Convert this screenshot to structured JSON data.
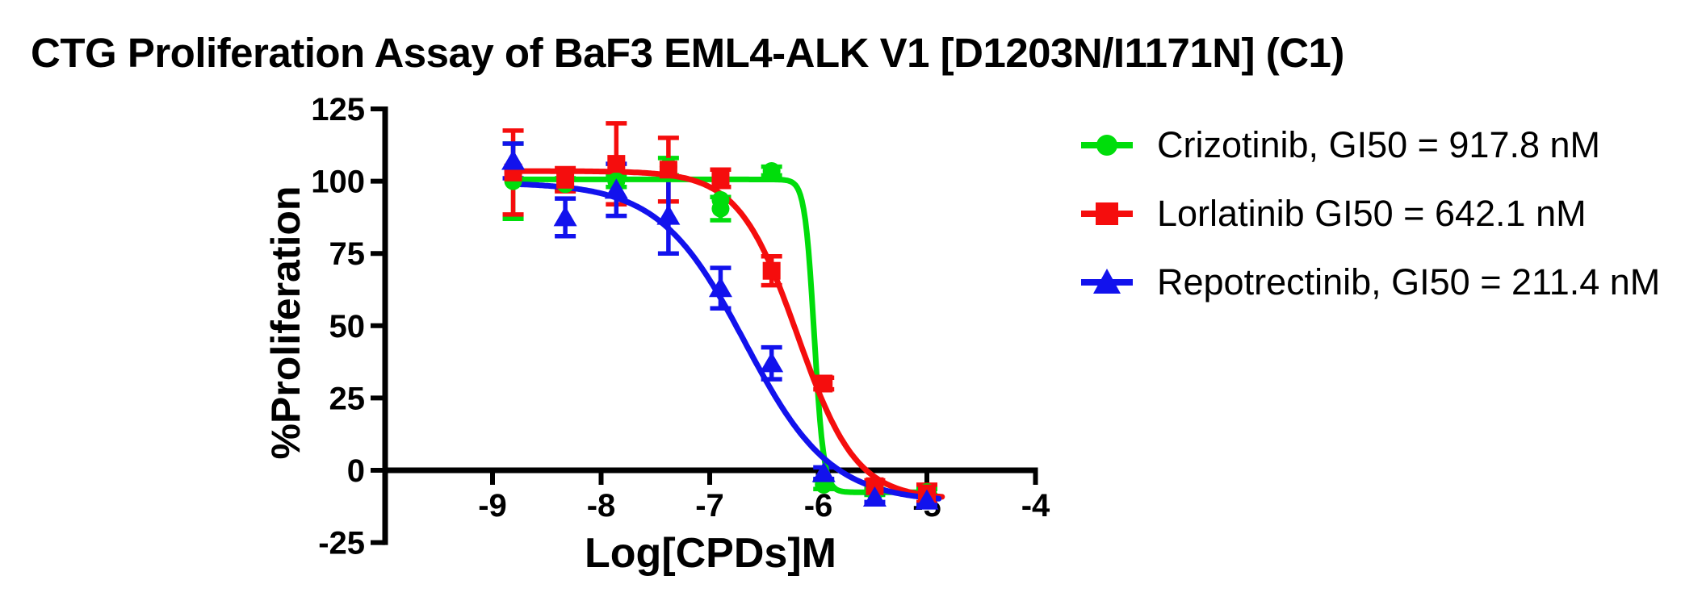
{
  "chart_data": {
    "type": "line",
    "title": "CTG Proliferation Assay of BaF3 EML4-ALK V1 [D1203N/I1171N] (C1)",
    "xlabel": "Log[CPDs]M",
    "ylabel": "%Proliferation",
    "x_ticks": [
      -9,
      -8,
      -7,
      -6,
      -5,
      -4
    ],
    "y_ticks": [
      125,
      100,
      75,
      50,
      25,
      0,
      -25
    ],
    "ylim": [
      -25,
      125
    ],
    "grid": false,
    "legend_position": "right-outside",
    "axis_color": "#000000",
    "background_color": "#ffffff",
    "series": [
      {
        "name": "Crizotinib",
        "legend_label": "Crizotinib, GI50 = 917.8 nM",
        "gi50_nM": 917.8,
        "color": "#00dd0b",
        "marker": "circle",
        "x": [
          -8.81,
          -8.33,
          -7.86,
          -7.38,
          -6.9,
          -6.43,
          -5.95,
          -5.48,
          -5.0
        ],
        "values": [
          100,
          99,
          100,
          105,
          90.5,
          103.5,
          -5,
          -7.5,
          -7.5
        ],
        "errors": [
          13,
          2,
          2,
          3,
          4,
          1.5,
          1.5,
          1,
          1
        ],
        "extra_points": [
          {
            "x": -6.9,
            "y": 93.5
          }
        ],
        "fit_curve": {
          "top": 100.6,
          "bottom": -7.6,
          "log_ec50": -6.037,
          "hill": 10,
          "x_start": -8.85,
          "x_end": -4.93
        }
      },
      {
        "name": "Lorlatinib",
        "legend_label": "Lorlatinib GI50 = 642.1 nM",
        "gi50_nM": 642.1,
        "color": "#f50d0d",
        "marker": "square",
        "x": [
          -8.81,
          -8.33,
          -7.86,
          -7.38,
          -6.9,
          -6.43,
          -5.95,
          -5.48,
          -5.0
        ],
        "values": [
          103,
          100.5,
          106,
          104,
          101,
          69,
          30,
          -5.5,
          -8
        ],
        "errors": [
          14.5,
          4,
          14,
          11,
          3,
          5,
          2,
          2,
          3
        ],
        "extra_points": [],
        "fit_curve": {
          "top": 103.5,
          "bottom": -10,
          "log_ec50": -6.192,
          "hill": 1.6,
          "x_start": -8.85,
          "x_end": -4.86
        }
      },
      {
        "name": "Repotrectinib",
        "legend_label": "Repotrectinib, GI50 = 211.4 nM",
        "gi50_nM": 211.4,
        "color": "#1212ed",
        "marker": "triangle",
        "x": [
          -8.81,
          -8.33,
          -7.86,
          -7.38,
          -6.9,
          -6.43,
          -5.95,
          -5.48,
          -5.0
        ],
        "values": [
          107,
          87.5,
          97,
          88,
          63,
          37,
          -1,
          -9.5,
          -10.5
        ],
        "errors": [
          6,
          6.5,
          9,
          13,
          7,
          5.5,
          2,
          1.5,
          1.5
        ],
        "extra_points": [],
        "fit_curve": {
          "top": 99.5,
          "bottom": -11,
          "log_ec50": -6.675,
          "hill": 1.1,
          "x_start": -8.85,
          "x_end": -4.89
        }
      }
    ]
  }
}
